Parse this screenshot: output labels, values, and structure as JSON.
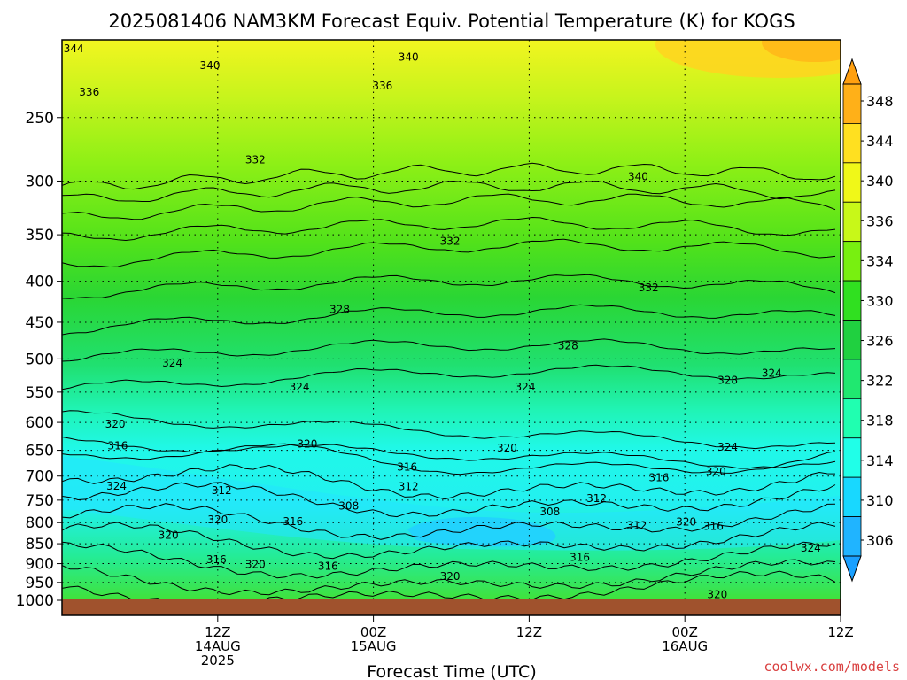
{
  "chart_data": {
    "type": "heatmap",
    "title": "2025081406 NAM3KM Forecast Equiv. Potential Temperature (K) for KOGS",
    "xlabel": "Forecast Time (UTC)",
    "ylabel": "",
    "y_scale": "log-pressure",
    "ylim": [
      1000,
      200
    ],
    "xlim": [
      6,
      66
    ],
    "y_ticks": [
      250,
      300,
      350,
      400,
      450,
      500,
      550,
      600,
      650,
      700,
      750,
      800,
      850,
      900,
      950,
      1000
    ],
    "x_ticks": [
      {
        "hour": 18,
        "lines": [
          "12Z",
          "14AUG",
          "2025"
        ]
      },
      {
        "hour": 30,
        "lines": [
          "00Z",
          "15AUG"
        ]
      },
      {
        "hour": 42,
        "lines": [
          "12Z"
        ]
      },
      {
        "hour": 54,
        "lines": [
          "00Z",
          "16AUG"
        ]
      },
      {
        "hour": 66,
        "lines": [
          "12Z"
        ]
      }
    ],
    "colorbar": {
      "levels": [
        306,
        310,
        314,
        318,
        322,
        326,
        330,
        334,
        336,
        340,
        344,
        348
      ],
      "labels": [
        "306",
        "310",
        "314",
        "318",
        "322",
        "326",
        "330",
        "334",
        "336",
        "340",
        "344",
        "348"
      ],
      "colors": [
        "#20b4ff",
        "#18d8ff",
        "#20ffe8",
        "#20ffb0",
        "#20e870",
        "#20d040",
        "#30e020",
        "#78f010",
        "#c8f818",
        "#f0f818",
        "#ffe020",
        "#ffb018"
      ],
      "min_arrow_color": "#1aa0ff",
      "max_arrow_color": "#ffa010"
    },
    "contour_labels": [
      {
        "text": "344",
        "x": 6.9,
        "p": 205
      },
      {
        "text": "340",
        "x": 17.4,
        "p": 215
      },
      {
        "text": "340",
        "x": 32.7,
        "p": 210
      },
      {
        "text": "336",
        "x": 8.1,
        "p": 232
      },
      {
        "text": "336",
        "x": 30.7,
        "p": 228
      },
      {
        "text": "332",
        "x": 20.9,
        "p": 282
      },
      {
        "text": "340",
        "x": 50.4,
        "p": 296
      },
      {
        "text": "332",
        "x": 35.9,
        "p": 356
      },
      {
        "text": "332",
        "x": 51.2,
        "p": 407
      },
      {
        "text": "328",
        "x": 27.4,
        "p": 433
      },
      {
        "text": "328",
        "x": 45.0,
        "p": 481
      },
      {
        "text": "324",
        "x": 14.5,
        "p": 505
      },
      {
        "text": "324",
        "x": 60.7,
        "p": 520
      },
      {
        "text": "328",
        "x": 57.3,
        "p": 531
      },
      {
        "text": "324",
        "x": 24.3,
        "p": 541
      },
      {
        "text": "324",
        "x": 41.7,
        "p": 541
      },
      {
        "text": "320",
        "x": 10.1,
        "p": 602
      },
      {
        "text": "320",
        "x": 24.9,
        "p": 638
      },
      {
        "text": "320",
        "x": 40.3,
        "p": 645
      },
      {
        "text": "324",
        "x": 57.3,
        "p": 643
      },
      {
        "text": "316",
        "x": 10.3,
        "p": 641
      },
      {
        "text": "316",
        "x": 32.6,
        "p": 681
      },
      {
        "text": "320",
        "x": 56.4,
        "p": 690
      },
      {
        "text": "316",
        "x": 52.0,
        "p": 702
      },
      {
        "text": "324",
        "x": 10.2,
        "p": 719
      },
      {
        "text": "312",
        "x": 18.3,
        "p": 729
      },
      {
        "text": "312",
        "x": 32.7,
        "p": 720
      },
      {
        "text": "312",
        "x": 47.2,
        "p": 746
      },
      {
        "text": "308",
        "x": 28.1,
        "p": 762
      },
      {
        "text": "308",
        "x": 43.6,
        "p": 775
      },
      {
        "text": "320",
        "x": 18.0,
        "p": 792
      },
      {
        "text": "316",
        "x": 23.8,
        "p": 796
      },
      {
        "text": "312",
        "x": 50.3,
        "p": 806
      },
      {
        "text": "320",
        "x": 54.1,
        "p": 797
      },
      {
        "text": "316",
        "x": 56.2,
        "p": 808
      },
      {
        "text": "320",
        "x": 14.2,
        "p": 829
      },
      {
        "text": "316",
        "x": 17.9,
        "p": 888
      },
      {
        "text": "320",
        "x": 20.9,
        "p": 901
      },
      {
        "text": "316",
        "x": 26.5,
        "p": 906
      },
      {
        "text": "324",
        "x": 63.7,
        "p": 860
      },
      {
        "text": "316",
        "x": 45.9,
        "p": 883
      },
      {
        "text": "320",
        "x": 35.9,
        "p": 933
      },
      {
        "text": "320",
        "x": 56.5,
        "p": 982
      }
    ]
  },
  "credit": "coolwx.com/models"
}
